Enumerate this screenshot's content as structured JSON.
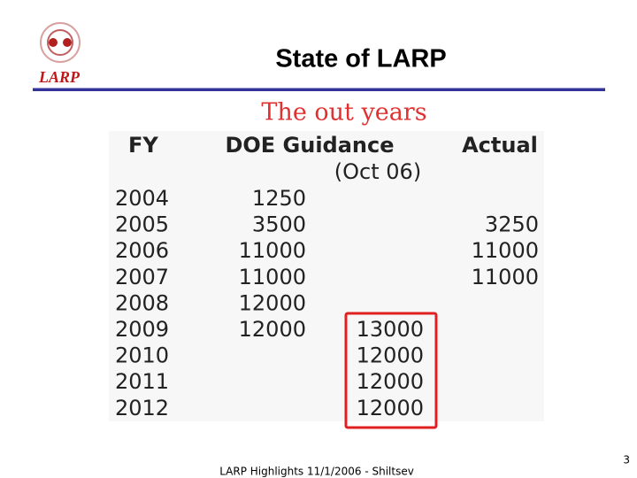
{
  "header": {
    "logo": "LARP",
    "title": "State of LARP"
  },
  "subtitle": "The out years",
  "table": {
    "columns": {
      "fy": "FY",
      "guidance": "DOE Guidance",
      "actual": "Actual"
    },
    "note": "(Oct 06)",
    "rows": [
      {
        "fy": 2004,
        "guidance": 1250
      },
      {
        "fy": 2005,
        "guidance": 3500,
        "actual": 3250
      },
      {
        "fy": 2006,
        "guidance": 11000,
        "actual": 11000
      },
      {
        "fy": 2007,
        "guidance": 11000,
        "actual": 11000
      },
      {
        "fy": 2008,
        "guidance": 12000
      },
      {
        "fy": 2009,
        "guidance": 12000,
        "revised": 13000
      },
      {
        "fy": 2010,
        "revised": 12000
      },
      {
        "fy": 2011,
        "revised": 12000
      },
      {
        "fy": 2012,
        "revised": 12000
      }
    ]
  },
  "footer": {
    "text": "LARP Highlights 11/1/2006 - Shiltsev",
    "page": 3
  }
}
